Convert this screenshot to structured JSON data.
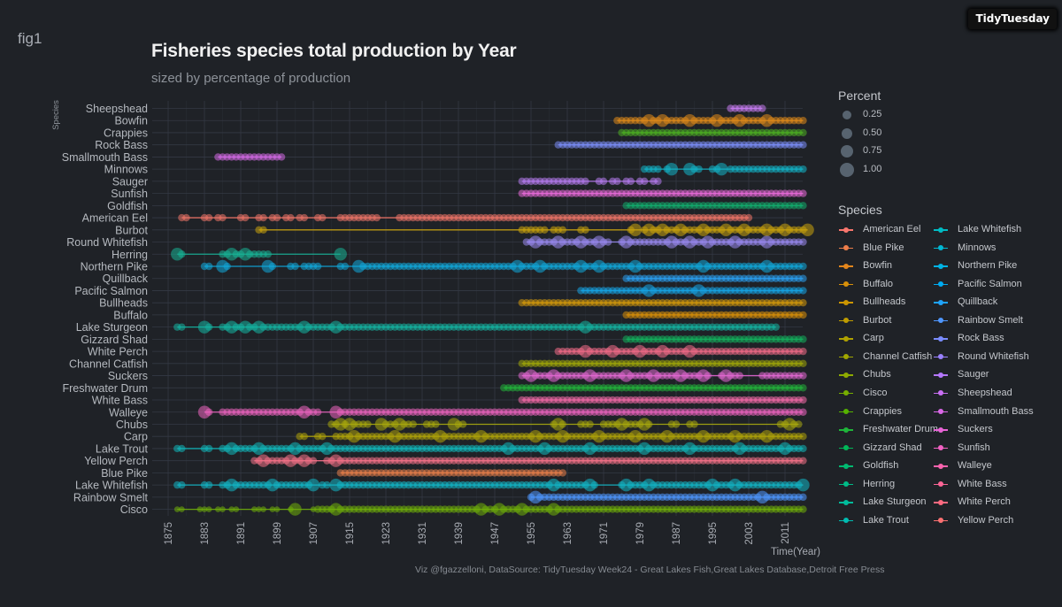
{
  "header": {
    "tag": "fig1",
    "badge": "TidyTuesday",
    "title": "Fisheries species total production by Year",
    "subtitle": "sized by percentage of production"
  },
  "caption": "Viz @fgazzelloni, DataSource: TidyTuesday Week24 - Great Lakes Fish,Great Lakes Database,Detroit Free Press",
  "chart_data": {
    "type": "scatter",
    "title": "Fisheries species total production by Year",
    "subtitle": "sized by percentage of production",
    "xlabel": "Time(Year)",
    "ylabel": "Species",
    "xlim": [
      1873,
      2017
    ],
    "x_ticks": [
      "1875",
      "1883",
      "1891",
      "1899",
      "1907",
      "1915",
      "1923",
      "1931",
      "1939",
      "1947",
      "1955",
      "1963",
      "1971",
      "1979",
      "1987",
      "1995",
      "2003",
      "2011"
    ],
    "grid": true,
    "legend_position": "right",
    "size_legend": {
      "title": "Percent",
      "values": [
        "0.25",
        "0.50",
        "0.75",
        "1.00"
      ]
    },
    "color_legend": {
      "title": "Species"
    },
    "series": [
      {
        "name": "American Eel",
        "color": "#f8766d",
        "y_label": "American Eel",
        "start": 1878,
        "end": 2003,
        "gaps": [
          [
            1879,
            1883
          ],
          [
            1884,
            1886
          ],
          [
            1887,
            1891
          ],
          [
            1892,
            1895
          ],
          [
            1896,
            1898
          ],
          [
            1899,
            1901
          ],
          [
            1902,
            1904
          ],
          [
            1905,
            1908
          ],
          [
            1909,
            1913
          ],
          [
            1921,
            1926
          ]
        ],
        "big": []
      },
      {
        "name": "Blue Pike",
        "color": "#ea8331",
        "y_label": "Blue Pike",
        "start": 1913,
        "end": 1962,
        "gaps": [],
        "big": []
      },
      {
        "name": "Bowfin",
        "color": "#db8e00",
        "y_label": "Bowfin",
        "start": 1974,
        "end": 2015,
        "gaps": [],
        "big": [
          1981,
          1984,
          1990,
          1996,
          2001,
          2007
        ]
      },
      {
        "name": "Buffalo",
        "color": "#c99800",
        "y_label": "Buffalo",
        "start": 1976,
        "end": 2015,
        "gaps": [],
        "big": []
      },
      {
        "name": "Bullheads",
        "color": "#b3a000",
        "y_label": "Bullheads",
        "start": 1953,
        "end": 2015,
        "gaps": [],
        "big": []
      },
      {
        "name": "Burbot",
        "color": "#a3a500",
        "y_label": "Burbot",
        "start": 1895,
        "end": 2016,
        "gaps": [
          [
            1896,
            1953
          ],
          [
            1958,
            1960
          ],
          [
            1962,
            1966
          ],
          [
            1967,
            1977
          ],
          [
            1978,
            1980
          ]
        ],
        "big": [
          1978,
          1981,
          1984,
          1988,
          1993,
          1998,
          2002,
          2007,
          2011,
          2016
        ]
      },
      {
        "name": "Carp",
        "color": "#8aab00",
        "y_label": "Carp",
        "start": 1904,
        "end": 2015,
        "gaps": [
          [
            1905,
            1908
          ],
          [
            1909,
            1912
          ]
        ],
        "big": [
          1916,
          1925,
          1935,
          1944,
          1956,
          1962,
          1970,
          1978,
          1985,
          1993,
          2000,
          2007
        ]
      },
      {
        "name": "Channel Catfish",
        "color": "#6bb100",
        "y_label": "Channel Catfish",
        "start": 1953,
        "end": 2015,
        "gaps": [],
        "big": []
      },
      {
        "name": "Chubs",
        "color": "#39b600",
        "y_label": "Chubs",
        "start": 1911,
        "end": 2014,
        "gaps": [
          [
            1919,
            1922
          ],
          [
            1929,
            1932
          ],
          [
            1934,
            1938
          ],
          [
            1940,
            1960
          ],
          [
            1962,
            1966
          ],
          [
            1968,
            1971
          ],
          [
            1981,
            1986
          ],
          [
            1987,
            1990
          ],
          [
            1991,
            2010
          ]
        ],
        "big": [
          1913,
          1915,
          1922,
          1926,
          1931,
          1938,
          1961,
          1970,
          1975,
          1980,
          2012
        ]
      },
      {
        "name": "Cisco",
        "color": "#00ba38",
        "y_label": "Cisco",
        "start": 1877,
        "end": 2015,
        "gaps": [
          [
            1878,
            1882
          ],
          [
            1884,
            1886
          ],
          [
            1887,
            1889
          ],
          [
            1890,
            1894
          ],
          [
            1896,
            1898
          ],
          [
            1899,
            1902
          ],
          [
            1903,
            1907
          ]
        ],
        "big": [
          1903,
          1912,
          1944,
          1948,
          1953,
          1960
        ]
      },
      {
        "name": "Crappies",
        "color": "#00be67",
        "y_label": "Crappies",
        "start": 1975,
        "end": 2015,
        "gaps": [],
        "big": []
      },
      {
        "name": "Freshwater Drum",
        "color": "#00c08b",
        "y_label": "Freshwater Drum",
        "start": 1949,
        "end": 2015,
        "gaps": [],
        "big": []
      },
      {
        "name": "Gizzard Shad",
        "color": "#00c1a9",
        "y_label": "Gizzard Shad",
        "start": 1976,
        "end": 2015,
        "gaps": [],
        "big": []
      },
      {
        "name": "Goldfish",
        "color": "#00bfc4",
        "y_label": "Goldfish",
        "start": 1976,
        "end": 2015,
        "gaps": [],
        "big": []
      },
      {
        "name": "Herring",
        "color": "#00bbdb",
        "y_label": "Herring",
        "start": 1877,
        "end": 1913,
        "gaps": [
          [
            1878,
            1887
          ],
          [
            1897,
            1913
          ]
        ],
        "big": [
          1877,
          1889,
          1892,
          1913
        ]
      },
      {
        "name": "Lake Sturgeon",
        "color": "#00b4ef",
        "y_label": "Lake Sturgeon",
        "start": 1877,
        "end": 2009,
        "gaps": [
          [
            1878,
            1883
          ],
          [
            1884,
            1887
          ]
        ],
        "big": [
          1883,
          1889,
          1892,
          1895,
          1905,
          1912,
          1967
        ]
      },
      {
        "name": "Lake Trout",
        "color": "#00a9ff",
        "y_label": "Lake Trout",
        "start": 1877,
        "end": 2015,
        "gaps": [
          [
            1878,
            1883
          ],
          [
            1884,
            1887
          ]
        ],
        "big": [
          1889,
          1895,
          1903,
          1910,
          1950,
          1958,
          1968,
          1980,
          1990,
          2001,
          2011
        ]
      },
      {
        "name": "Lake Whitefish",
        "color": "#619cff",
        "y_label": "Lake Whitefish",
        "start": 1877,
        "end": 2015,
        "gaps": [
          [
            1878,
            1883
          ],
          [
            1884,
            1887
          ],
          [
            1907,
            1909
          ],
          [
            1910,
            1912
          ],
          [
            1969,
            1975
          ]
        ],
        "big": [
          1889,
          1898,
          1907,
          1912,
          1960,
          1968,
          1976,
          1981,
          1995,
          2000,
          2015
        ]
      },
      {
        "name": "Minnows",
        "color": "#9590ff",
        "y_label": "Minnows",
        "start": 1980,
        "end": 2015,
        "gaps": [
          [
            1983,
            1985
          ],
          [
            1986,
            1990
          ],
          [
            1992,
            1995
          ],
          [
            1997,
            1999
          ]
        ],
        "big": [
          1986,
          1990,
          1997
        ]
      },
      {
        "name": "Northern Pike",
        "color": "#b983ff",
        "y_label": "Northern Pike",
        "start": 1883,
        "end": 2015,
        "gaps": [
          [
            1884,
            1887
          ],
          [
            1888,
            1897
          ],
          [
            1898,
            1902
          ],
          [
            1903,
            1905
          ],
          [
            1908,
            1913
          ],
          [
            1914,
            1917
          ]
        ],
        "big": [
          1887,
          1897,
          1904,
          1917,
          1952,
          1957,
          1966,
          1970,
          1978,
          1993,
          2007
        ]
      },
      {
        "name": "Pacific Salmon",
        "color": "#d874fd",
        "y_label": "Pacific Salmon",
        "start": 1966,
        "end": 2015,
        "gaps": [],
        "big": [
          1981,
          1992
        ]
      },
      {
        "name": "Quillback",
        "color": "#e76bf3",
        "y_label": "Quillback",
        "start": 1976,
        "end": 2015,
        "gaps": [],
        "big": []
      },
      {
        "name": "Rainbow Smelt",
        "color": "#f564e3",
        "y_label": "Rainbow Smelt",
        "start": 1955,
        "end": 2015,
        "gaps": [],
        "big": [
          1956,
          2006
        ]
      },
      {
        "name": "Rock Bass",
        "color": "#fd61d1",
        "y_label": "Rock Bass",
        "start": 1961,
        "end": 2015,
        "gaps": [],
        "big": []
      },
      {
        "name": "Round Whitefish",
        "color": "#ff62bc",
        "y_label": "Round Whitefish",
        "start": 1954,
        "end": 2015,
        "gaps": [
          [
            1972,
            1975
          ]
        ],
        "big": [
          1956,
          1961,
          1966,
          1970,
          1976,
          1986,
          1990,
          1994,
          2000,
          2007
        ]
      },
      {
        "name": "Sauger",
        "color": "#ff6a98",
        "y_label": "Sauger",
        "start": 1953,
        "end": 1983,
        "gaps": [
          [
            1967,
            1970
          ],
          [
            1971,
            1973
          ],
          [
            1974,
            1976
          ],
          [
            1977,
            1979
          ],
          [
            1980,
            1982
          ]
        ],
        "big": []
      },
      {
        "name": "Sheepshead",
        "color": "#ff6c67",
        "y_label": "Sheepshead",
        "start": 1999,
        "end": 2006,
        "gaps": [],
        "big": []
      },
      {
        "name": "Smallmouth Bass",
        "color": "#f8766d",
        "y_label": "Smallmouth Bass",
        "start": 1886,
        "end": 1900,
        "gaps": [],
        "big": []
      },
      {
        "name": "Suckers",
        "color": "#ffffff",
        "y_label": "Suckers",
        "start": 1953,
        "end": 2015,
        "gaps": [
          [
            1994,
            1997
          ],
          [
            2001,
            2006
          ]
        ],
        "big": [
          1955,
          1960,
          1968,
          1976,
          1982,
          1988,
          1993,
          1998
        ]
      },
      {
        "name": "Sunfish",
        "color": "#ffffff",
        "y_label": "Sunfish",
        "start": 1953,
        "end": 2015,
        "gaps": [],
        "big": []
      },
      {
        "name": "Walleye",
        "color": "#ffffff",
        "y_label": "Walleye",
        "start": 1883,
        "end": 2015,
        "gaps": [
          [
            1884,
            1887
          ],
          [
            1908,
            1912
          ]
        ],
        "big": [
          1883,
          1905,
          1912
        ]
      },
      {
        "name": "White Bass",
        "color": "#ffffff",
        "y_label": "White Bass",
        "start": 1953,
        "end": 2015,
        "gaps": [],
        "big": []
      },
      {
        "name": "White Perch",
        "color": "#ffffff",
        "y_label": "White Perch",
        "start": 1961,
        "end": 2015,
        "gaps": [],
        "big": [
          1967,
          1973,
          1979,
          1984,
          1990
        ]
      },
      {
        "name": "Yellow Perch",
        "color": "#ffffff",
        "y_label": "Yellow Perch",
        "start": 1894,
        "end": 2015,
        "gaps": [
          [
            1907,
            1910
          ]
        ],
        "big": [
          1896,
          1902,
          1905,
          1912
        ]
      }
    ]
  },
  "legend_colors": {
    "American Eel": "#f8766d",
    "Blue Pike": "#ee7e4a",
    "Bowfin": "#e3861c",
    "Buffalo": "#d8900a",
    "Bullheads": "#cc9600",
    "Burbot": "#bf9c00",
    "Carp": "#b0a200",
    "Channel Catfish": "#a1a600",
    "Chubs": "#8eab00",
    "Cisco": "#77ae00",
    "Crappies": "#56b200",
    "Freshwater Drum": "#1fb53a",
    "Gizzard Shad": "#00b758",
    "Goldfish": "#00b971",
    "Herring": "#00bb87",
    "Lake Sturgeon": "#00bc9c",
    "Lake Trout": "#00bcb1",
    "Lake Whitefish": "#00bbc4",
    "Minnows": "#00b8d4",
    "Northern Pike": "#00b3e5",
    "Pacific Salmon": "#00acf2",
    "Quillback": "#1fa3fc",
    "Rainbow Smelt": "#4f97ff",
    "Rock Bass": "#7a8cff",
    "Round Whitefish": "#9a81ff",
    "Sauger": "#b477fc",
    "Sheepshead": "#c96ff3",
    "Smallmouth Bass": "#da68e6",
    "Suckers": "#e864d6",
    "Sunfish": "#f261c3",
    "Walleye": "#f963ad",
    "White Bass": "#fd6697",
    "White Perch": "#fe6a80",
    "Yellow Perch": "#fc7172"
  }
}
